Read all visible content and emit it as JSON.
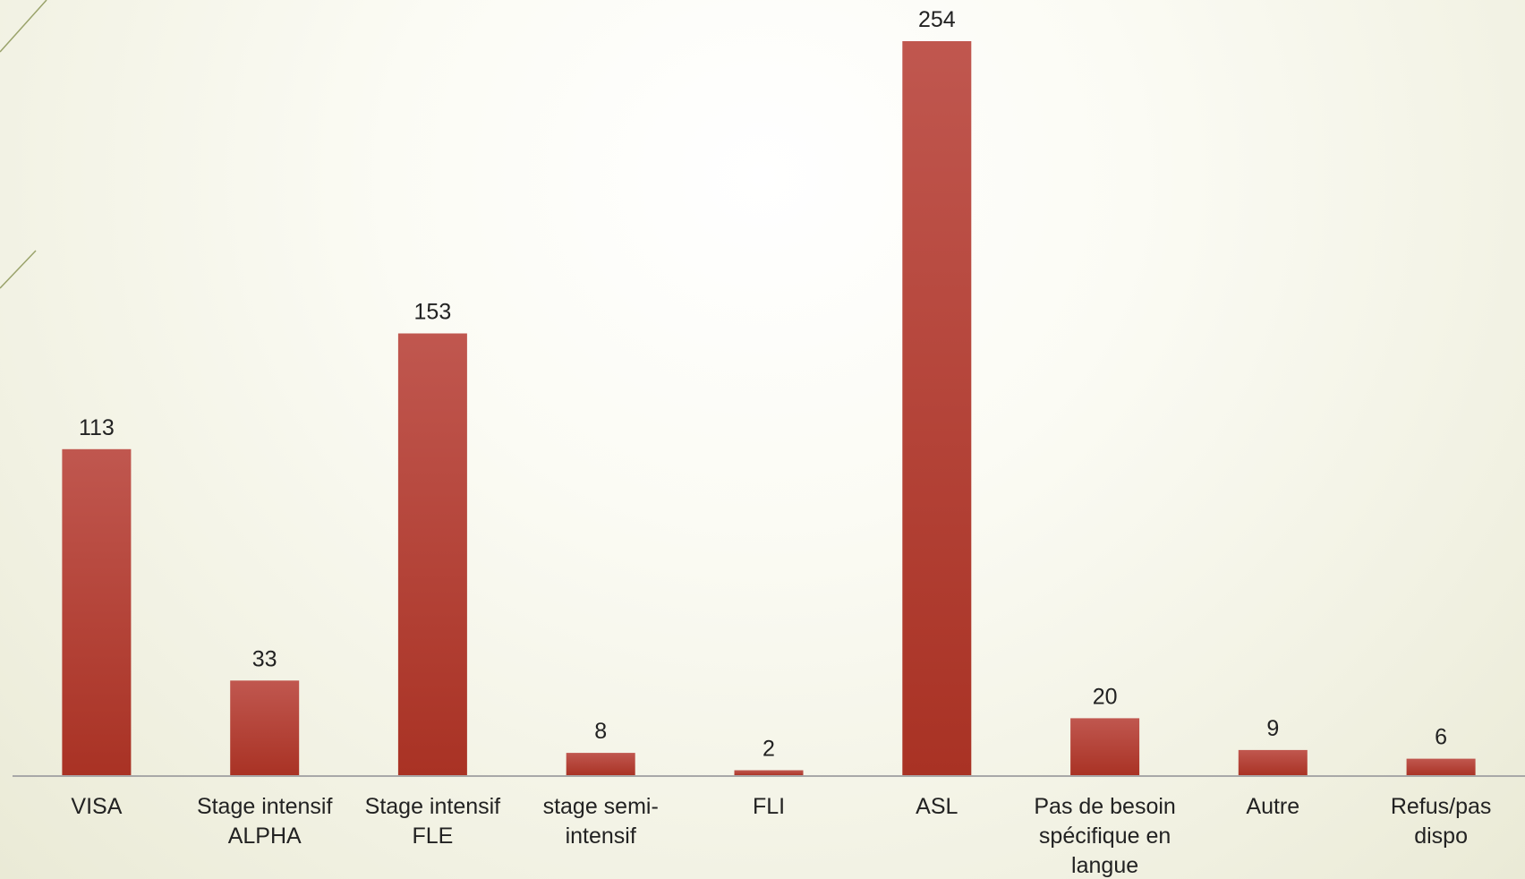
{
  "chart_data": {
    "type": "bar",
    "title": "",
    "xlabel": "",
    "ylabel": "",
    "categories": [
      [
        "VISA"
      ],
      [
        "Stage intensif",
        "ALPHA"
      ],
      [
        "Stage intensif",
        "FLE"
      ],
      [
        "stage semi-",
        "intensif"
      ],
      [
        "FLI"
      ],
      [
        "ASL"
      ],
      [
        "Pas de besoin",
        "spécifique en",
        "langue"
      ],
      [
        "Autre"
      ],
      [
        "Refus/pas",
        "dispo"
      ]
    ],
    "values": [
      113,
      33,
      153,
      8,
      2,
      254,
      20,
      9,
      6
    ],
    "ylim": [
      0,
      254
    ],
    "grid": false,
    "legend": "none",
    "colors": {
      "bar_top": "#c0574f",
      "bar_bottom": "#a93224",
      "axis": "#a8a8a8",
      "decor": "#9aa36b"
    }
  }
}
